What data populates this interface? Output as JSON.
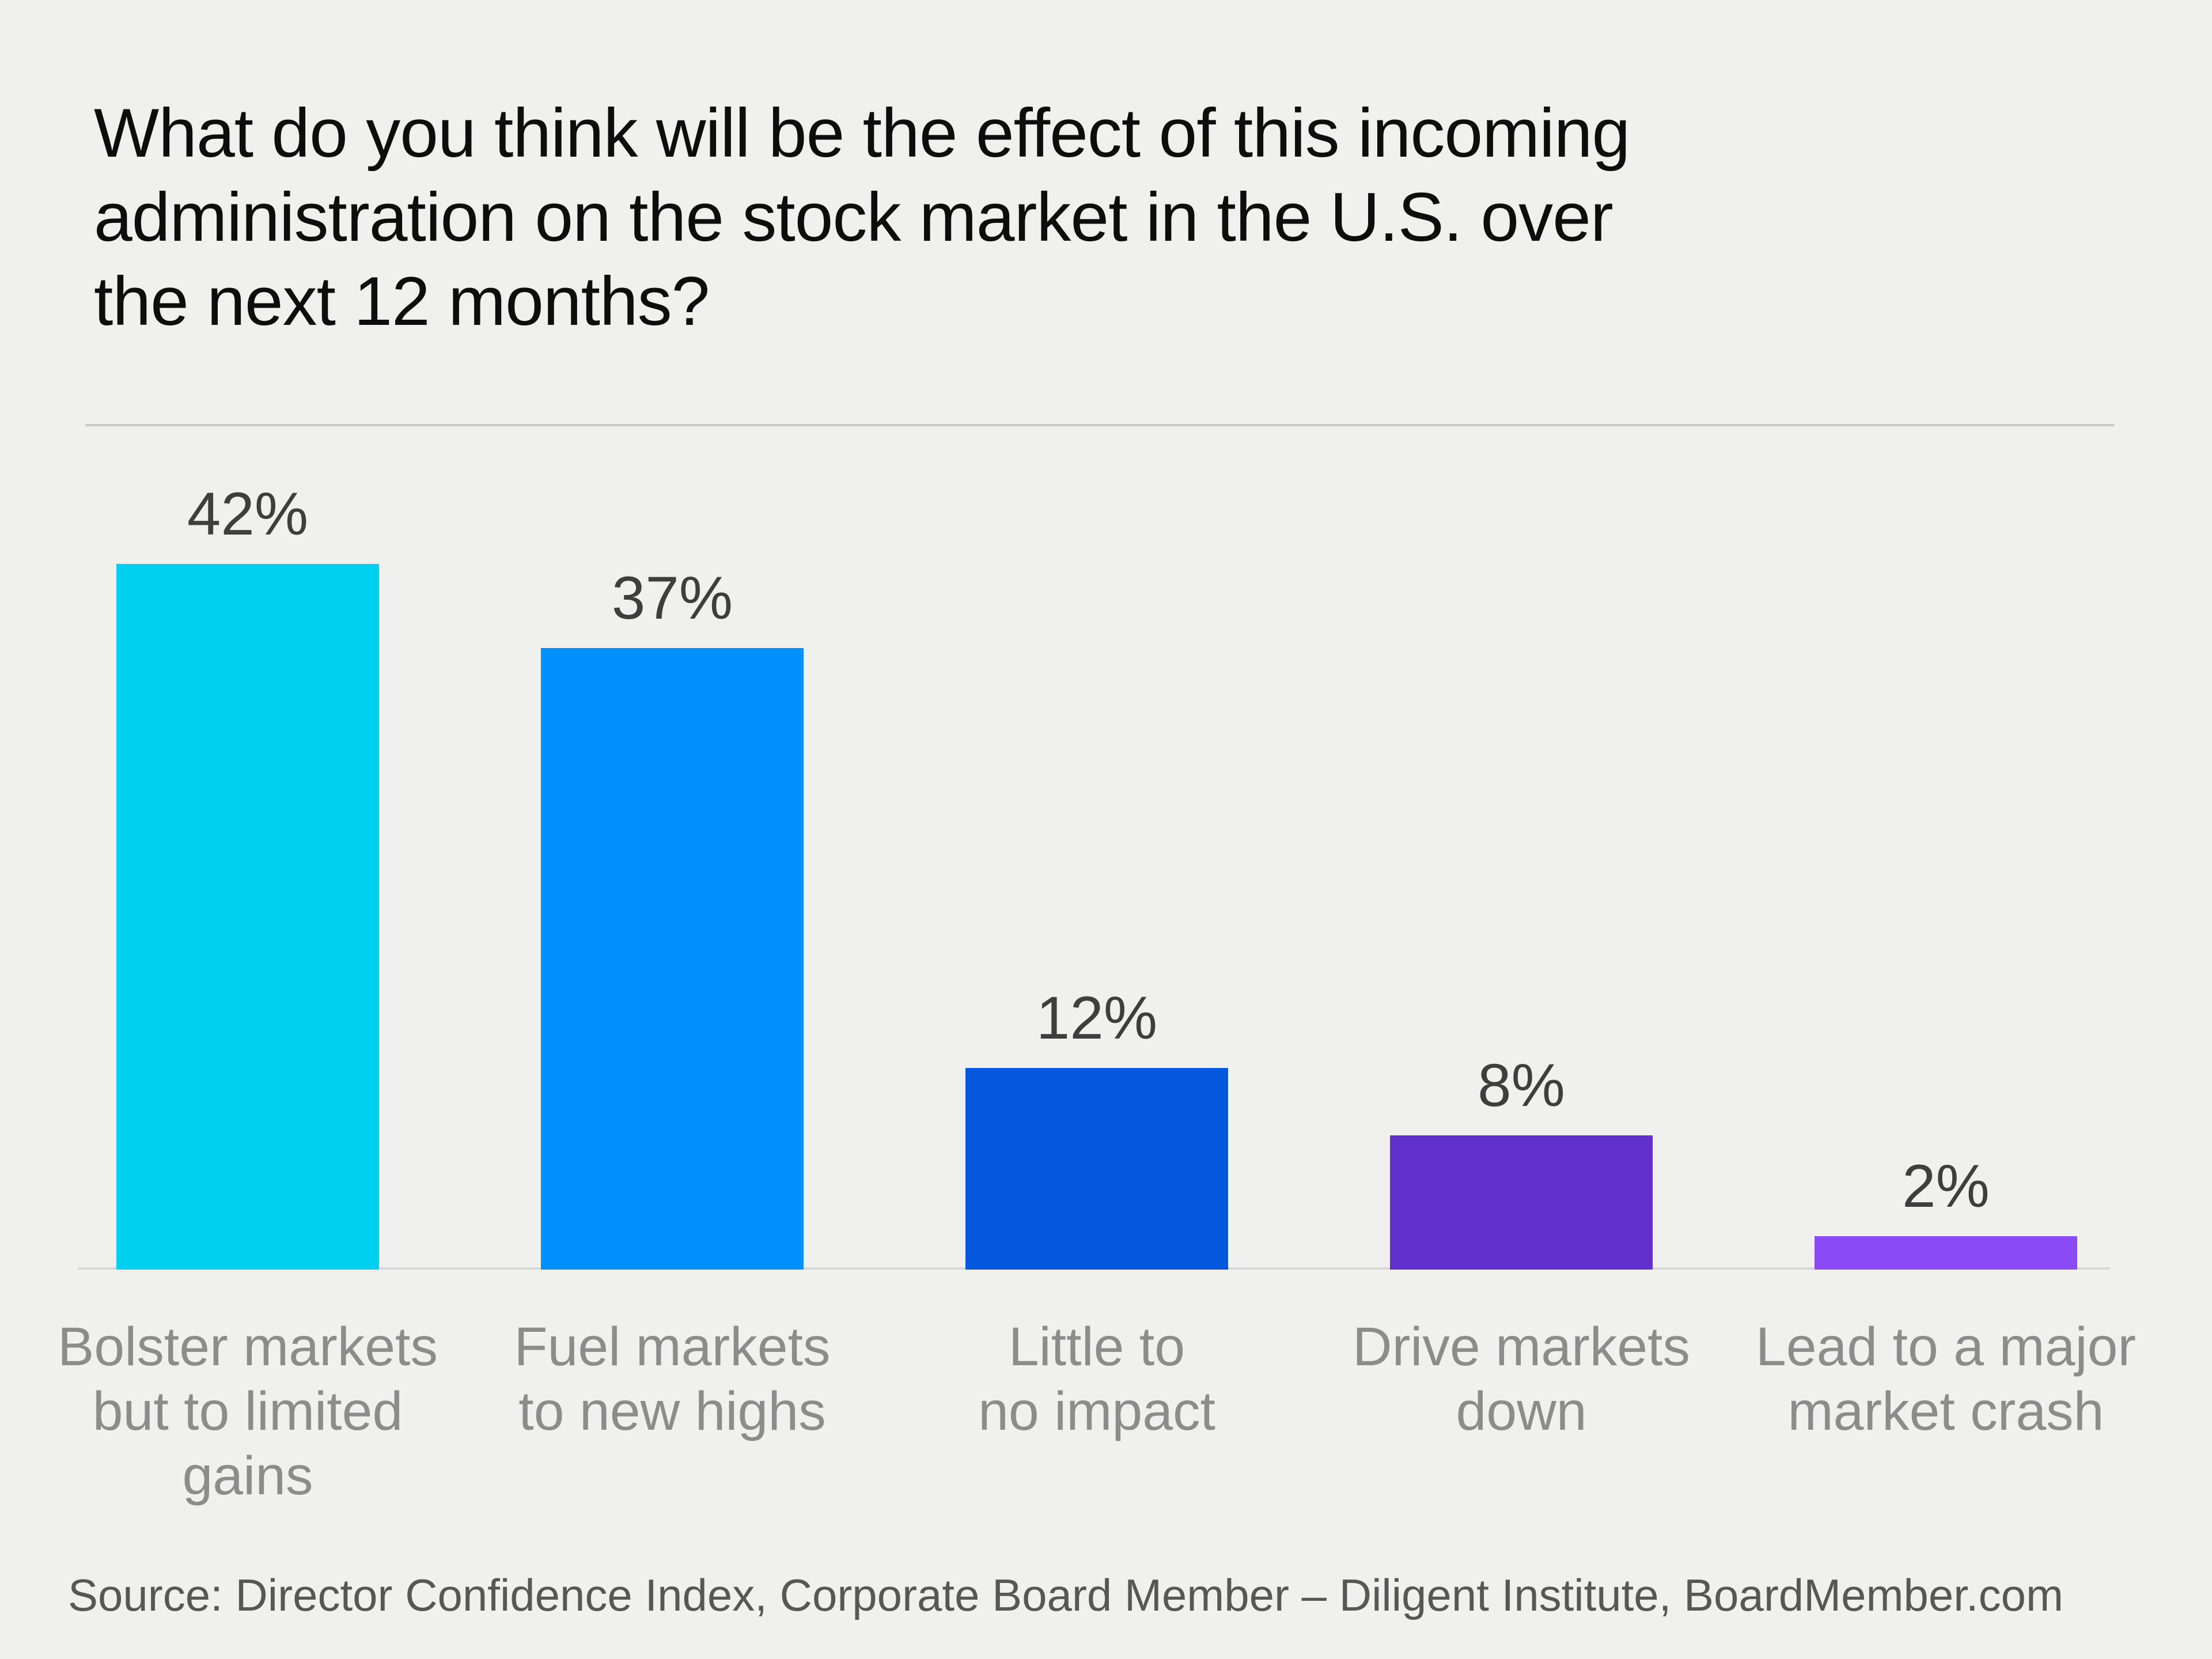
{
  "chart_data": {
    "type": "bar",
    "title": "What do you think will be the effect of this incoming\nadministration on the stock market in the U.S. over\nthe next 12 months?",
    "categories": [
      "Bolster markets\nbut to limited\ngains",
      "Fuel markets\nto new highs",
      "Little to\nno impact",
      "Drive markets\ndown",
      "Lead to a major\nmarket crash"
    ],
    "values": [
      42,
      37,
      12,
      8,
      2
    ],
    "value_labels": [
      "42%",
      "37%",
      "12%",
      "8%",
      "2%"
    ],
    "bar_colors": [
      "#00cfef",
      "#0090fc",
      "#0558dd",
      "#6130cd",
      "#8a4bf7"
    ],
    "xlabel": "",
    "ylabel": "",
    "ylim": [
      0,
      45
    ],
    "grid": false,
    "legend": false,
    "background": "#f0f0ef",
    "source": "Source: Director Confidence Index, Corporate Board Member – Diligent Institute, BoardMember.com"
  }
}
